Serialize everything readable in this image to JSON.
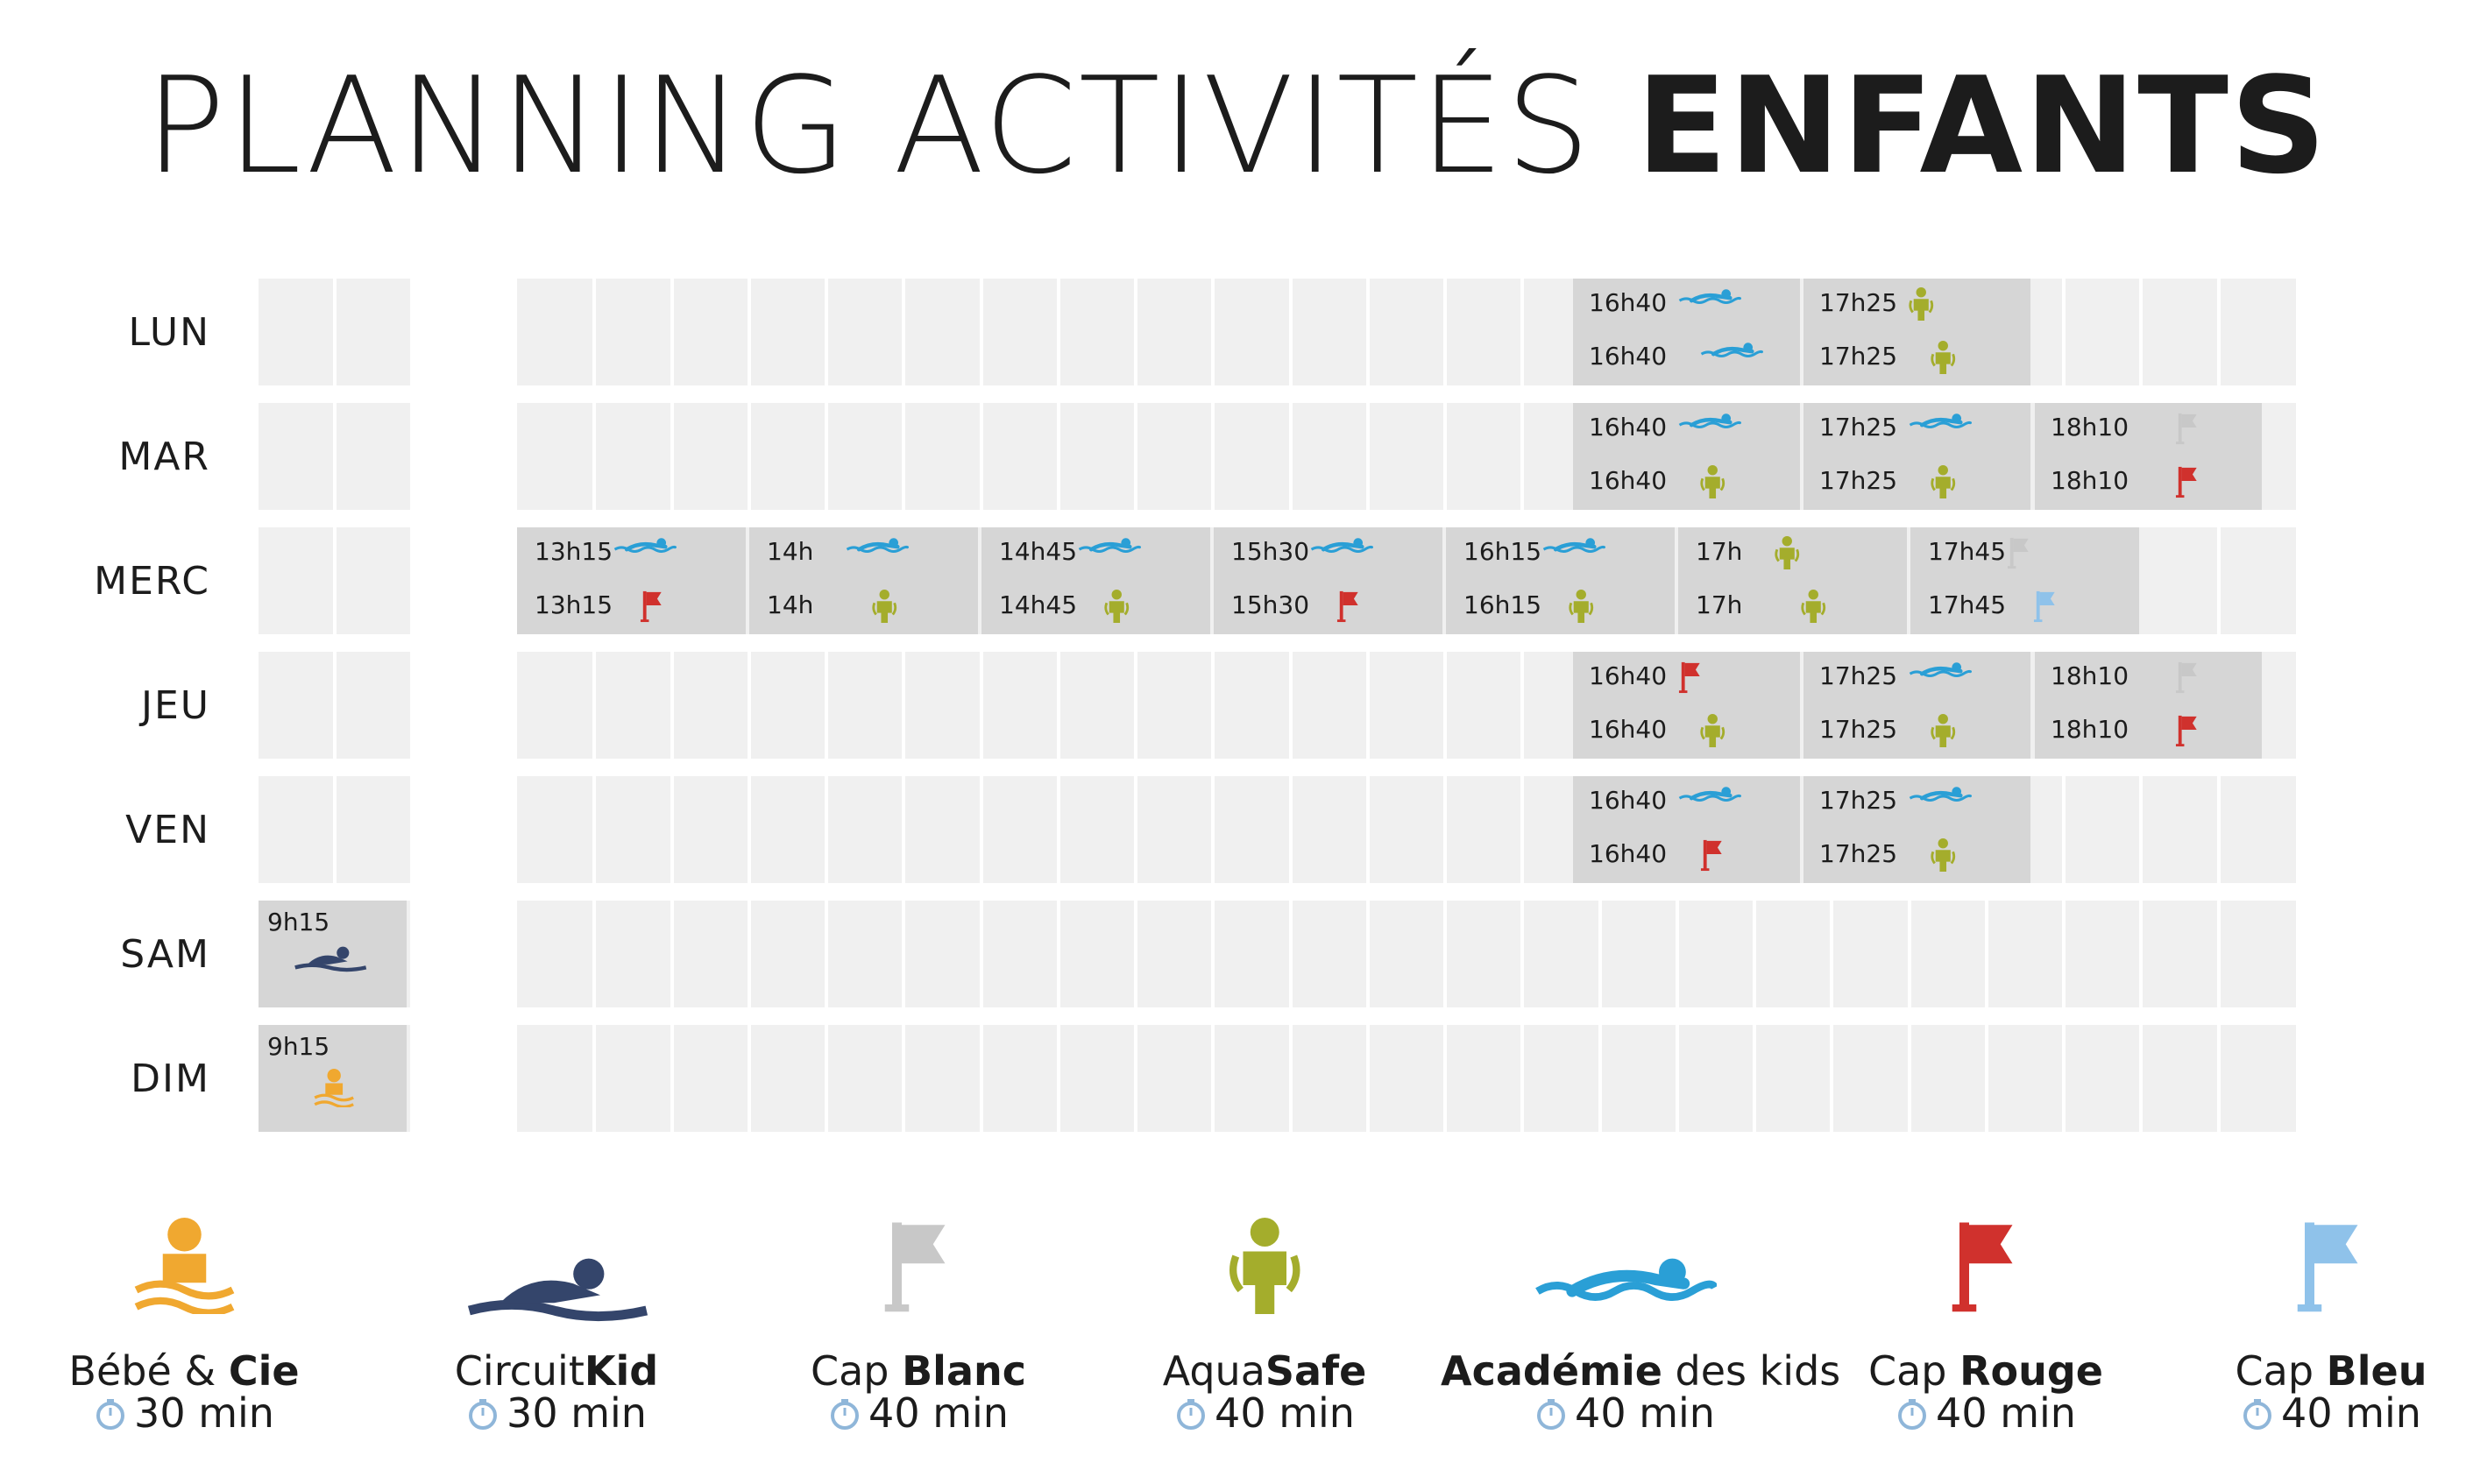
{
  "title": {
    "light": "PLANNING ACTIVITÉS",
    "bold": "ENFANTS"
  },
  "colors": {
    "bebe": "#f0a830",
    "circuitkid": "#34456b",
    "cap_blanc": "#c8c8c8",
    "aquasafe": "#a4ad2c",
    "academie": "#2a9fd6",
    "cap_rouge": "#d0312d",
    "cap_bleu": "#8fc2ea"
  },
  "days": [
    {
      "label": "LUN"
    },
    {
      "label": "MAR"
    },
    {
      "label": "MERC"
    },
    {
      "label": "JEU"
    },
    {
      "label": "VEN"
    },
    {
      "label": "SAM"
    },
    {
      "label": "DIM"
    }
  ],
  "sessions": {
    "lun": [
      {
        "time": "16h40",
        "icon": "swimmer-icon",
        "color": "academie"
      },
      {
        "time": "17h25",
        "icon": "person-icon",
        "color": "aquasafe"
      },
      {
        "time": "16h40",
        "icon": "swimmer-icon",
        "color": "academie"
      },
      {
        "time": "17h25",
        "icon": "person-icon",
        "color": "aquasafe"
      }
    ],
    "mar": [
      {
        "time": "16h40",
        "icon": "swimmer-icon",
        "color": "academie"
      },
      {
        "time": "17h25",
        "icon": "swimmer-icon",
        "color": "academie"
      },
      {
        "time": "18h10",
        "icon": "flag-icon",
        "color": "cap_blanc"
      },
      {
        "time": "16h40",
        "icon": "person-icon",
        "color": "aquasafe"
      },
      {
        "time": "17h25",
        "icon": "person-icon",
        "color": "aquasafe"
      },
      {
        "time": "18h10",
        "icon": "flag-icon",
        "color": "cap_rouge"
      }
    ],
    "merc": [
      {
        "time": "13h15",
        "icon": "swimmer-icon",
        "color": "academie"
      },
      {
        "time": "14h",
        "icon": "swimmer-icon",
        "color": "academie"
      },
      {
        "time": "14h45",
        "icon": "swimmer-icon",
        "color": "academie"
      },
      {
        "time": "15h30",
        "icon": "swimmer-icon",
        "color": "academie"
      },
      {
        "time": "16h15",
        "icon": "swimmer-icon",
        "color": "academie"
      },
      {
        "time": "17h",
        "icon": "person-icon",
        "color": "aquasafe"
      },
      {
        "time": "17h45",
        "icon": "flag-icon",
        "color": "cap_blanc"
      },
      {
        "time": "13h15",
        "icon": "flag-icon",
        "color": "cap_rouge"
      },
      {
        "time": "14h",
        "icon": "person-icon",
        "color": "aquasafe"
      },
      {
        "time": "14h45",
        "icon": "person-icon",
        "color": "aquasafe"
      },
      {
        "time": "15h30",
        "icon": "flag-icon",
        "color": "cap_rouge"
      },
      {
        "time": "16h15",
        "icon": "person-icon",
        "color": "aquasafe"
      },
      {
        "time": "17h",
        "icon": "person-icon",
        "color": "aquasafe"
      },
      {
        "time": "17h45",
        "icon": "flag-icon",
        "color": "cap_bleu"
      }
    ],
    "jeu": [
      {
        "time": "16h40",
        "icon": "flag-icon",
        "color": "cap_rouge"
      },
      {
        "time": "17h25",
        "icon": "swimmer-icon",
        "color": "academie"
      },
      {
        "time": "18h10",
        "icon": "flag-icon",
        "color": "cap_blanc"
      },
      {
        "time": "16h40",
        "icon": "person-icon",
        "color": "aquasafe"
      },
      {
        "time": "17h25",
        "icon": "person-icon",
        "color": "aquasafe"
      },
      {
        "time": "18h10",
        "icon": "flag-icon",
        "color": "cap_rouge"
      }
    ],
    "ven": [
      {
        "time": "16h40",
        "icon": "swimmer-icon",
        "color": "academie"
      },
      {
        "time": "17h25",
        "icon": "swimmer-icon",
        "color": "academie"
      },
      {
        "time": "16h40",
        "icon": "flag-icon",
        "color": "cap_rouge"
      },
      {
        "time": "17h25",
        "icon": "person-icon",
        "color": "aquasafe"
      }
    ],
    "sam": [
      {
        "time": "9h15",
        "icon": "circuit-swimmer-icon",
        "color": "circuitkid"
      }
    ],
    "dim": [
      {
        "time": "9h15",
        "icon": "baby-icon",
        "color": "bebe"
      }
    ]
  },
  "legend": [
    {
      "name_light": "Bébé & ",
      "name_bold": "Cie",
      "name_after": "",
      "duration": "30 min",
      "icon": "baby-icon"
    },
    {
      "name_light": "Circuit",
      "name_bold": "Kid",
      "name_after": "",
      "duration": "30 min",
      "icon": "circuit-swimmer-icon"
    },
    {
      "name_light": "Cap ",
      "name_bold": "Blanc",
      "name_after": "",
      "duration": "40 min",
      "icon": "flag-icon"
    },
    {
      "name_light": "Aqua",
      "name_bold": "Safe",
      "name_after": "",
      "duration": "40 min",
      "icon": "person-icon"
    },
    {
      "name_light": "",
      "name_bold": "Académie",
      "name_after": " des kids",
      "duration": "40 min",
      "icon": "swimmer-icon"
    },
    {
      "name_light": "Cap ",
      "name_bold": "Rouge",
      "name_after": "",
      "duration": "40 min",
      "icon": "flag-icon"
    },
    {
      "name_light": "Cap ",
      "name_bold": "Bleu",
      "name_after": "",
      "duration": "40 min",
      "icon": "flag-icon"
    }
  ]
}
